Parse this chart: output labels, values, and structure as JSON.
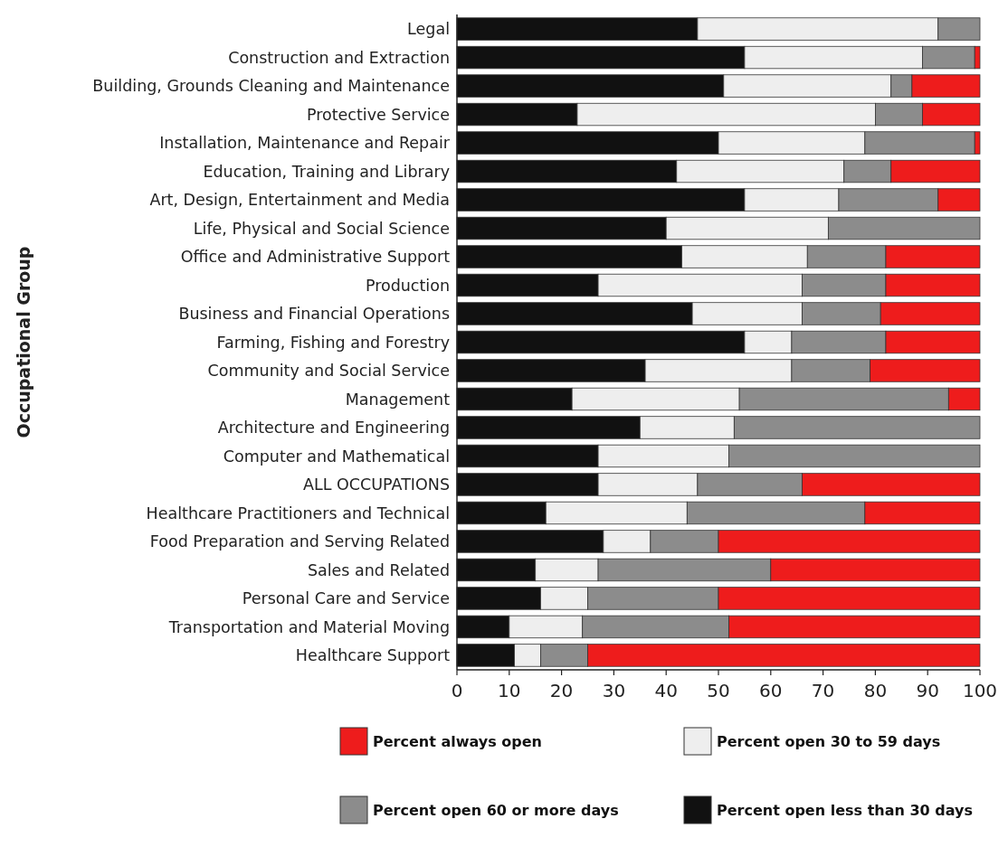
{
  "chart_data": {
    "type": "bar",
    "orientation": "horizontal",
    "stacked": true,
    "ylabel": "Occupational Group",
    "categories": [
      "Legal",
      "Construction and Extraction",
      "Building, Grounds Cleaning and Maintenance",
      "Protective Service",
      "Installation, Maintenance and Repair",
      "Education, Training and Library",
      "Art, Design, Entertainment and Media",
      "Life, Physical and Social Science",
      "Office and Administrative Support",
      "Production",
      "Business and Financial Operations",
      "Farming, Fishing and Forestry",
      "Community and Social Service",
      "Management",
      "Architecture and Engineering",
      "Computer and Mathematical",
      "ALL OCCUPATIONS",
      "Healthcare Practitioners and Technical",
      "Food Preparation and Serving Related",
      "Sales and Related",
      "Personal Care and Service",
      "Transportation and Material Moving",
      "Healthcare Support"
    ],
    "series": [
      {
        "name": "Percent open less than 30 days",
        "color": "#111111",
        "values": [
          46,
          55,
          51,
          23,
          50,
          42,
          55,
          40,
          43,
          27,
          45,
          55,
          36,
          22,
          35,
          27,
          27,
          17,
          28,
          15,
          16,
          10,
          11
        ]
      },
      {
        "name": "Percent open 30 to 59 days",
        "color": "#eeeeee",
        "values": [
          46,
          34,
          32,
          57,
          28,
          32,
          18,
          31,
          24,
          39,
          21,
          9,
          28,
          32,
          18,
          25,
          19,
          27,
          9,
          12,
          9,
          14,
          5
        ]
      },
      {
        "name": "Percent open 60 or more days",
        "color": "#8c8c8c",
        "values": [
          8,
          10,
          4,
          9,
          21,
          9,
          19,
          29,
          15,
          16,
          15,
          18,
          15,
          40,
          47,
          48,
          20,
          34,
          13,
          33,
          25,
          28,
          9
        ]
      },
      {
        "name": "Percent always open",
        "color": "#ee1c1c",
        "values": [
          0,
          1,
          13,
          11,
          1,
          17,
          8,
          0,
          18,
          18,
          19,
          18,
          21,
          6,
          0,
          0,
          34,
          22,
          50,
          40,
          50,
          48,
          75
        ]
      }
    ],
    "xlim": [
      0,
      100
    ],
    "xticks": [
      0,
      10,
      20,
      30,
      40,
      50,
      60,
      70,
      80,
      90,
      100
    ],
    "legend": "bottom"
  }
}
